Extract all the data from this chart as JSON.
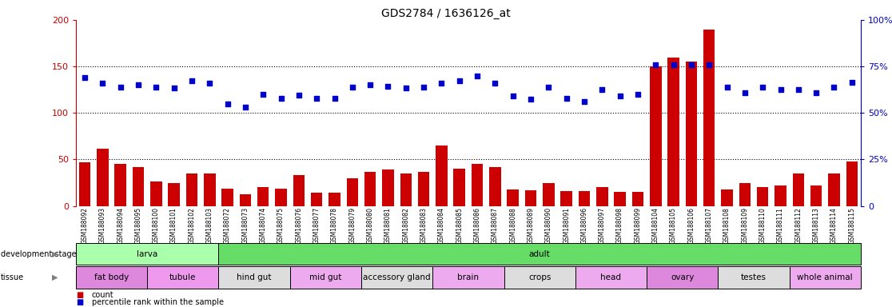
{
  "title": "GDS2784 / 1636126_at",
  "samples": [
    "GSM188092",
    "GSM188093",
    "GSM188094",
    "GSM188095",
    "GSM188100",
    "GSM188101",
    "GSM188102",
    "GSM188103",
    "GSM188072",
    "GSM188073",
    "GSM188074",
    "GSM188075",
    "GSM188076",
    "GSM188077",
    "GSM188078",
    "GSM188079",
    "GSM188080",
    "GSM188081",
    "GSM188082",
    "GSM188083",
    "GSM188084",
    "GSM188085",
    "GSM188086",
    "GSM188087",
    "GSM188088",
    "GSM188089",
    "GSM188090",
    "GSM188091",
    "GSM188096",
    "GSM188097",
    "GSM188098",
    "GSM188099",
    "GSM188104",
    "GSM188105",
    "GSM188106",
    "GSM188107",
    "GSM188108",
    "GSM188109",
    "GSM188110",
    "GSM188111",
    "GSM188112",
    "GSM188113",
    "GSM188114",
    "GSM188115"
  ],
  "counts": [
    47,
    62,
    45,
    42,
    26,
    25,
    35,
    35,
    19,
    13,
    20,
    19,
    33,
    14,
    14,
    30,
    37,
    39,
    35,
    37,
    65,
    40,
    45,
    42,
    18,
    17,
    25,
    16,
    16,
    20,
    15,
    15,
    150,
    160,
    155,
    190,
    18,
    25,
    20,
    22,
    35,
    22,
    35,
    48
  ],
  "percentiles": [
    138,
    132,
    128,
    130,
    128,
    127,
    135,
    132,
    110,
    106,
    120,
    116,
    119,
    116,
    116,
    128,
    130,
    129,
    127,
    128,
    132,
    135,
    140,
    132,
    118,
    115,
    128,
    116,
    112,
    125,
    118,
    120,
    152,
    152,
    152,
    152,
    128,
    122,
    128,
    125,
    125,
    122,
    128,
    133
  ],
  "ylim_left": [
    0,
    200
  ],
  "yticks_left": [
    0,
    50,
    100,
    150,
    200
  ],
  "yticks_right_labels": [
    "0",
    "25%",
    "50%",
    "75%",
    "100%"
  ],
  "yticks_right_pos": [
    0,
    50,
    100,
    150,
    200
  ],
  "bar_color": "#cc0000",
  "dot_color": "#0000cc",
  "dev_stage_groups": [
    {
      "label": "larva",
      "start": 0,
      "end": 7,
      "color": "#aaffaa"
    },
    {
      "label": "adult",
      "start": 8,
      "end": 43,
      "color": "#66dd66"
    }
  ],
  "tissue_groups": [
    {
      "label": "fat body",
      "start": 0,
      "end": 3,
      "color": "#dd88dd"
    },
    {
      "label": "tubule",
      "start": 4,
      "end": 7,
      "color": "#ee99ee"
    },
    {
      "label": "hind gut",
      "start": 8,
      "end": 11,
      "color": "#dddddd"
    },
    {
      "label": "mid gut",
      "start": 12,
      "end": 15,
      "color": "#eeaaee"
    },
    {
      "label": "accessory gland",
      "start": 16,
      "end": 19,
      "color": "#dddddd"
    },
    {
      "label": "brain",
      "start": 20,
      "end": 23,
      "color": "#eeaaee"
    },
    {
      "label": "crops",
      "start": 24,
      "end": 27,
      "color": "#dddddd"
    },
    {
      "label": "head",
      "start": 28,
      "end": 31,
      "color": "#eeaaee"
    },
    {
      "label": "ovary",
      "start": 32,
      "end": 35,
      "color": "#dd88dd"
    },
    {
      "label": "testes",
      "start": 36,
      "end": 39,
      "color": "#dddddd"
    },
    {
      "label": "whole animal",
      "start": 40,
      "end": 43,
      "color": "#eeaaee"
    }
  ],
  "dev_row_label": "development stage",
  "tissue_row_label": "tissue",
  "legend_count_label": "count",
  "legend_pct_label": "percentile rank within the sample",
  "xticklabel_fontsize": 5.5,
  "title_fontsize": 10,
  "annotation_fontsize": 7.5,
  "right_axis_color": "#0000cc",
  "left_axis_color": "#cc0000"
}
